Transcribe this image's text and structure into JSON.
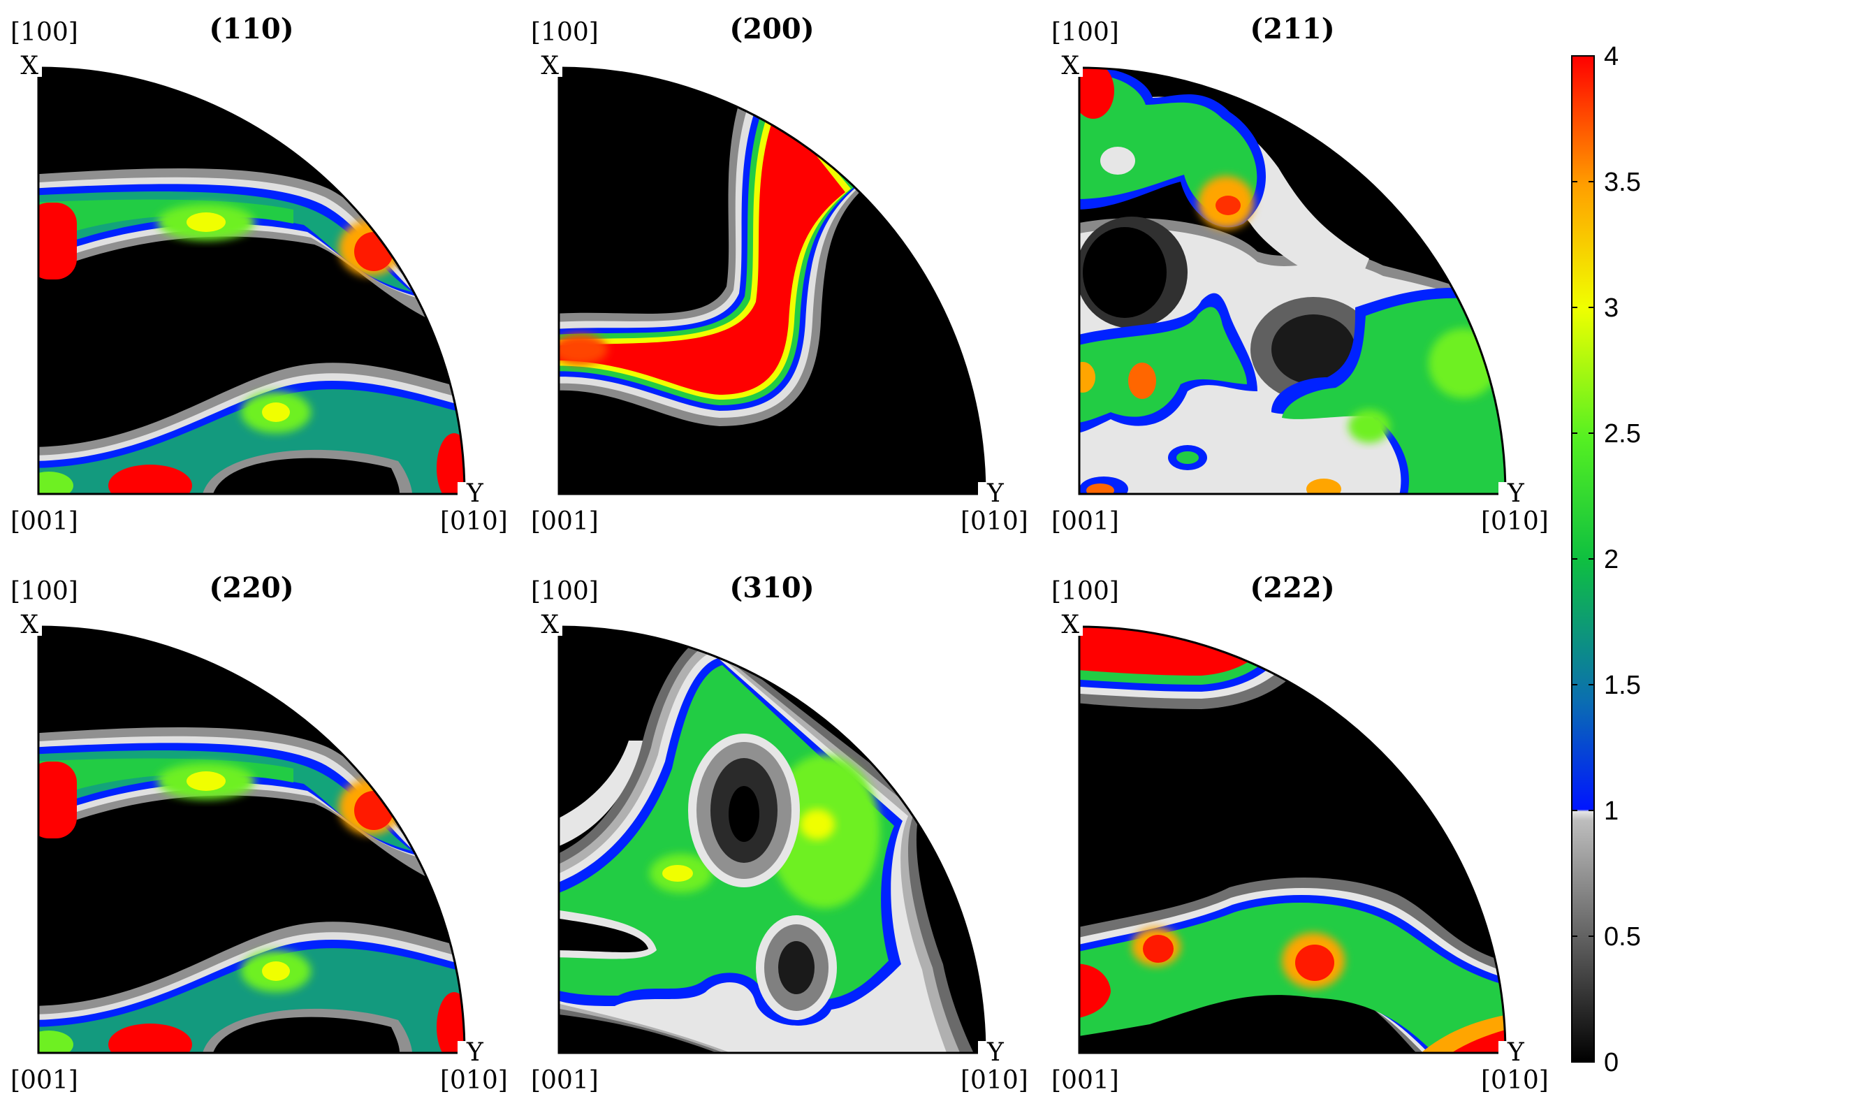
{
  "panels": [
    {
      "title": "(110)",
      "dir_x": "[100]",
      "dir_origin": "[001]",
      "dir_y": "[010]",
      "axis_x": "X",
      "axis_y": "Y"
    },
    {
      "title": "(200)",
      "dir_x": "[100]",
      "dir_origin": "[001]",
      "dir_y": "[010]",
      "axis_x": "X",
      "axis_y": "Y"
    },
    {
      "title": "(211)",
      "dir_x": "[100]",
      "dir_origin": "[001]",
      "dir_y": "[010]",
      "axis_x": "X",
      "axis_y": "Y"
    },
    {
      "title": "(220)",
      "dir_x": "[100]",
      "dir_origin": "[001]",
      "dir_y": "[010]",
      "axis_x": "X",
      "axis_y": "Y"
    },
    {
      "title": "(310)",
      "dir_x": "[100]",
      "dir_origin": "[001]",
      "dir_y": "[010]",
      "axis_x": "X",
      "axis_y": "Y"
    },
    {
      "title": "(222)",
      "dir_x": "[100]",
      "dir_origin": "[001]",
      "dir_y": "[010]",
      "axis_x": "X",
      "axis_y": "Y"
    }
  ],
  "colorbar": {
    "min": 0,
    "max": 4,
    "ticks": [
      "0",
      "0.5",
      "1",
      "1.5",
      "2",
      "2.5",
      "3",
      "3.5",
      "4"
    ],
    "colors": {
      "zero": "#000000",
      "gray_light": "#dcdcdc",
      "blue": "#0022ff",
      "teal": "#118888",
      "green": "#22ee22",
      "yellow": "#f0ff00",
      "orange": "#ffa500",
      "red": "#ff0000"
    }
  }
}
